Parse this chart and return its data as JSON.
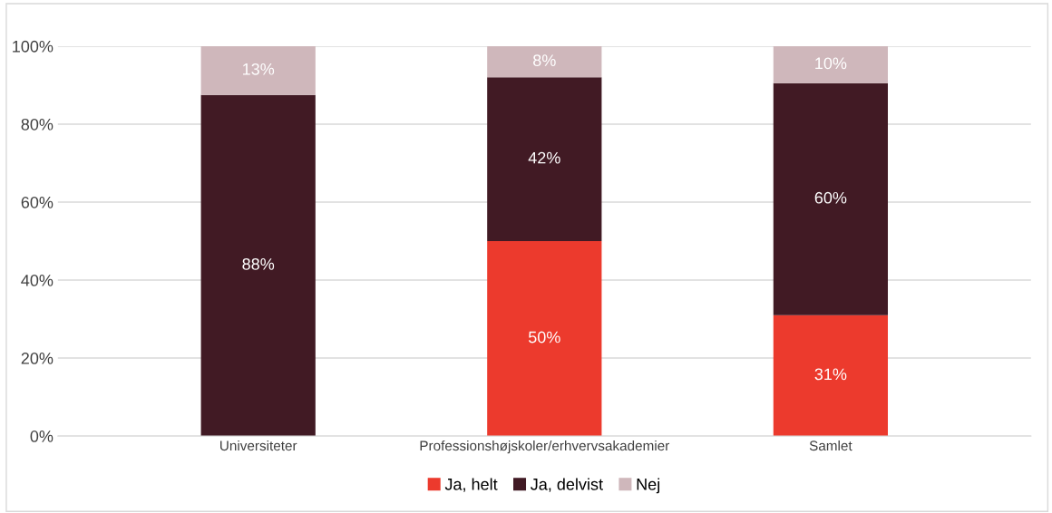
{
  "chart_data": {
    "type": "bar",
    "stacked": true,
    "categories": [
      "Universiteter",
      "Professionshøjskoler/erhvervsakademier",
      "Samlet"
    ],
    "series": [
      {
        "name": "Ja, helt",
        "color": "#ec3a2d",
        "values": [
          0,
          50,
          31
        ],
        "value_labels": [
          null,
          "50%",
          "31%"
        ]
      },
      {
        "name": "Ja, delvist",
        "color": "#411a24",
        "values": [
          87.5,
          42,
          59.5
        ],
        "value_labels": [
          "88%",
          "42%",
          "60%"
        ]
      },
      {
        "name": "Nej",
        "color": "#cfb7bb",
        "values": [
          12.5,
          8,
          9.5
        ],
        "value_labels": [
          "13%",
          "8%",
          "10%"
        ]
      }
    ],
    "ylim": [
      0,
      100
    ],
    "yticks": [
      {
        "value": 0,
        "label": "0%"
      },
      {
        "value": 20,
        "label": "20%"
      },
      {
        "value": 40,
        "label": "40%"
      },
      {
        "value": 60,
        "label": "60%"
      },
      {
        "value": 80,
        "label": "80%"
      },
      {
        "value": 100,
        "label": "100%"
      }
    ],
    "grid": "y",
    "legend": "bottom"
  }
}
